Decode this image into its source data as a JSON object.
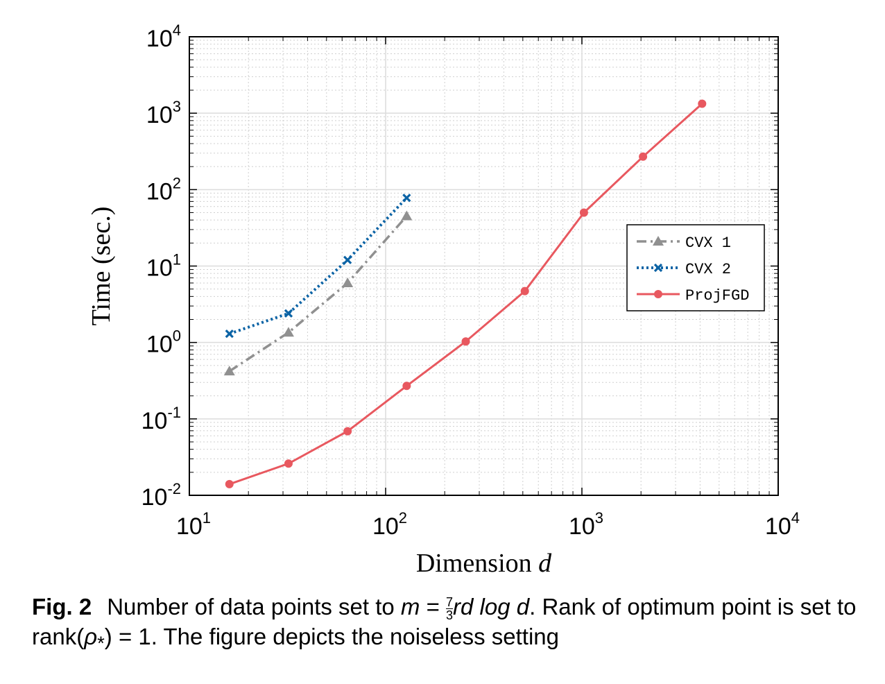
{
  "chart_data": {
    "type": "line",
    "xscale": "log",
    "yscale": "log",
    "xlim": [
      10,
      10000
    ],
    "ylim": [
      0.01,
      10000
    ],
    "grid": true,
    "xlabel": "Dimension d",
    "ylabel": "Time (sec.)",
    "x_ticks": [
      {
        "base": "10",
        "exp": "1",
        "value": 10
      },
      {
        "base": "10",
        "exp": "2",
        "value": 100
      },
      {
        "base": "10",
        "exp": "3",
        "value": 1000
      },
      {
        "base": "10",
        "exp": "4",
        "value": 10000
      }
    ],
    "y_ticks": [
      {
        "base": "10",
        "exp": "-2",
        "value": 0.01
      },
      {
        "base": "10",
        "exp": "-1",
        "value": 0.1
      },
      {
        "base": "10",
        "exp": "0",
        "value": 1
      },
      {
        "base": "10",
        "exp": "1",
        "value": 10
      },
      {
        "base": "10",
        "exp": "2",
        "value": 100
      },
      {
        "base": "10",
        "exp": "3",
        "value": 1000
      },
      {
        "base": "10",
        "exp": "4",
        "value": 10000
      }
    ],
    "legend_position": "right",
    "series": [
      {
        "name": "CVX 1",
        "color": "#909090",
        "line": "dash-dot",
        "marker": "triangle",
        "x": [
          16,
          32,
          64,
          128
        ],
        "y": [
          0.42,
          1.35,
          6.0,
          45
        ]
      },
      {
        "name": "CVX 2",
        "color": "#0b63a5",
        "line": "dotted",
        "marker": "x",
        "x": [
          16,
          32,
          64,
          128
        ],
        "y": [
          1.3,
          2.4,
          12,
          78
        ]
      },
      {
        "name": "ProjFGD",
        "color": "#e8585f",
        "line": "solid",
        "marker": "circle",
        "x": [
          16,
          32,
          64,
          128,
          256,
          512,
          1024,
          2048,
          4096
        ],
        "y": [
          0.014,
          0.026,
          0.069,
          0.27,
          1.03,
          4.7,
          50,
          270,
          1330
        ]
      }
    ]
  },
  "caption": {
    "label": "Fig. 2",
    "text1": "Number of data points set to ",
    "m": "m",
    "eq": " = ",
    "num": "7",
    "den": "3",
    "expr": "rd log d",
    "text2": ". Rank of optimum point is set to rank(",
    "rho": "ρ",
    "star": "*",
    "text3": ") = 1. The figure depicts the noiseless setting"
  }
}
